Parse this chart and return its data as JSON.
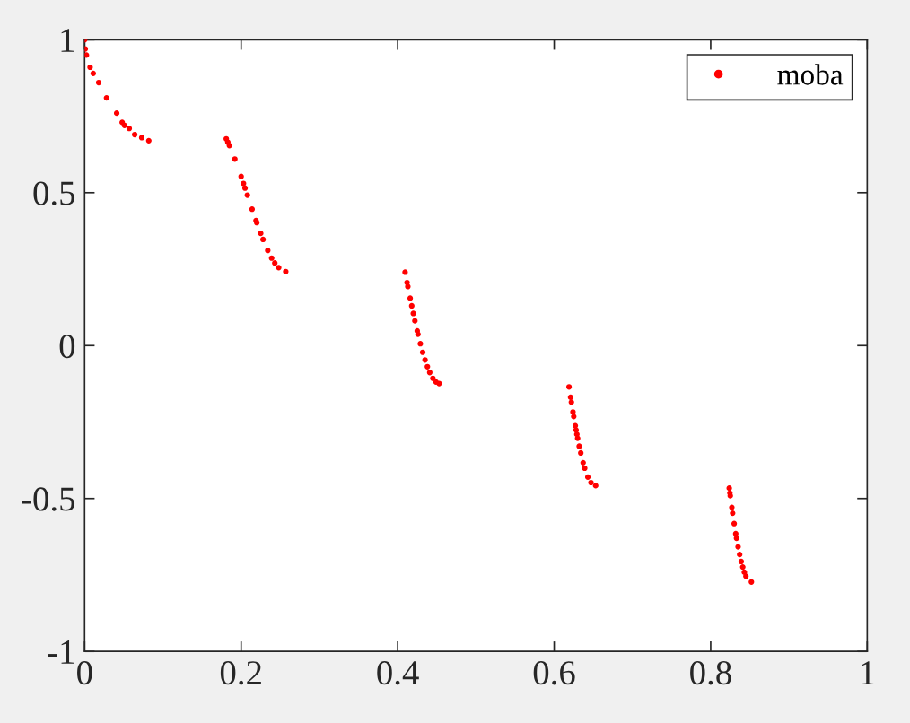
{
  "chart_data": {
    "type": "scatter",
    "xlim": [
      0,
      1
    ],
    "ylim": [
      -1,
      1
    ],
    "xticks": [
      0,
      0.2,
      0.4,
      0.6,
      0.8,
      1
    ],
    "yticks": [
      -1,
      -0.5,
      0,
      0.5,
      1
    ],
    "grid": false,
    "legend": "top right",
    "marker": "circle",
    "series": [
      {
        "name": "moba",
        "color": "#ff0000",
        "x": [
          0,
          0.0008,
          0.0023,
          0.007,
          0.011,
          0.018,
          0.028,
          0.041,
          0.048,
          0.051,
          0.057,
          0.064,
          0.073,
          0.082,
          0.181,
          0.183,
          0.185,
          0.192,
          0.2,
          0.203,
          0.205,
          0.208,
          0.214,
          0.219,
          0.22,
          0.225,
          0.228,
          0.234,
          0.239,
          0.243,
          0.248,
          0.257,
          0.4095,
          0.412,
          0.413,
          0.416,
          0.418,
          0.42,
          0.422,
          0.425,
          0.426,
          0.429,
          0.432,
          0.435,
          0.438,
          0.441,
          0.445,
          0.449,
          0.453,
          0.619,
          0.621,
          0.622,
          0.624,
          0.625,
          0.627,
          0.628,
          0.629,
          0.63,
          0.632,
          0.634,
          0.637,
          0.639,
          0.643,
          0.647,
          0.653,
          0.8237,
          0.8245,
          0.825,
          0.827,
          0.828,
          0.83,
          0.832,
          0.833,
          0.835,
          0.837,
          0.839,
          0.841,
          0.843,
          0.845,
          0.852
        ],
        "values": [
          1.0,
          0.97,
          0.95,
          0.91,
          0.89,
          0.86,
          0.81,
          0.76,
          0.73,
          0.72,
          0.71,
          0.69,
          0.68,
          0.67,
          0.676,
          0.665,
          0.654,
          0.61,
          0.553,
          0.53,
          0.515,
          0.492,
          0.446,
          0.409,
          0.402,
          0.367,
          0.347,
          0.311,
          0.286,
          0.27,
          0.255,
          0.242,
          0.24,
          0.206,
          0.193,
          0.155,
          0.13,
          0.105,
          0.081,
          0.048,
          0.037,
          0.006,
          -0.022,
          -0.047,
          -0.069,
          -0.088,
          -0.107,
          -0.119,
          -0.124,
          -0.135,
          -0.169,
          -0.185,
          -0.217,
          -0.232,
          -0.262,
          -0.276,
          -0.29,
          -0.303,
          -0.329,
          -0.351,
          -0.383,
          -0.401,
          -0.43,
          -0.448,
          -0.458,
          -0.466,
          -0.482,
          -0.491,
          -0.529,
          -0.548,
          -0.582,
          -0.615,
          -0.63,
          -0.658,
          -0.683,
          -0.706,
          -0.724,
          -0.741,
          -0.754,
          -0.773
        ]
      }
    ]
  }
}
